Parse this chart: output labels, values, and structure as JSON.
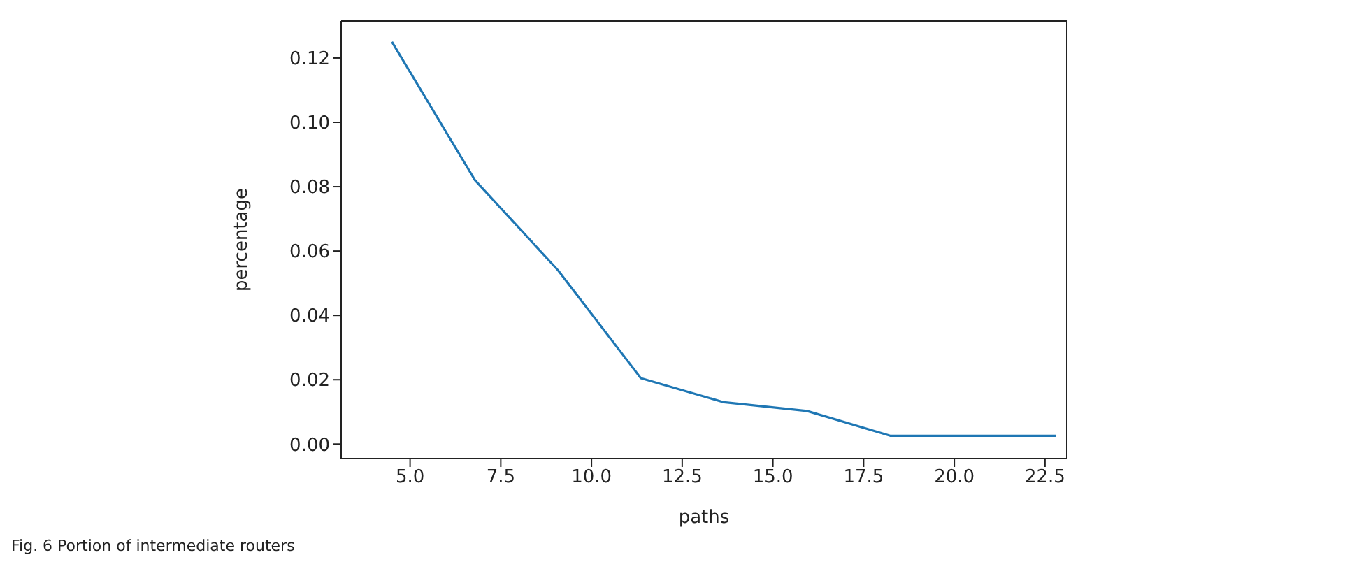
{
  "chart_data": {
    "type": "line",
    "xlabel": "paths",
    "ylabel": "percentage",
    "annotations": [
      "Fig. 6 Portion of intermediate routers"
    ],
    "x": [
      4.5,
      6.79,
      9.08,
      11.36,
      13.65,
      15.94,
      18.23,
      20.51,
      22.8
    ],
    "series": [
      {
        "color": "#1f77b4",
        "values": [
          0.125,
          0.082,
          0.054,
          0.0205,
          0.013,
          0.0103,
          0.0026,
          0.0026,
          0.0026
        ]
      }
    ],
    "xlim": [
      3.1,
      23.1
    ],
    "xticks": [
      {
        "value": 5,
        "label": "5.0"
      },
      {
        "value": 7.5,
        "label": "7.5"
      },
      {
        "value": 10,
        "label": "10.0"
      },
      {
        "value": 12.5,
        "label": "12.5"
      },
      {
        "value": 15,
        "label": "15.0"
      },
      {
        "value": 17.5,
        "label": "17.5"
      },
      {
        "value": 20,
        "label": "20.0"
      },
      {
        "value": 22.5,
        "label": "22.5"
      }
    ],
    "ylim": [
      -0.0045,
      0.1315
    ],
    "yticks": [
      {
        "value": 0,
        "label": "0.00"
      },
      {
        "value": 0.02,
        "label": "0.02"
      },
      {
        "value": 0.04,
        "label": "0.04"
      },
      {
        "value": 0.06,
        "label": "0.06"
      },
      {
        "value": 0.08,
        "label": "0.08"
      },
      {
        "value": 0.1,
        "label": "0.10"
      },
      {
        "value": 0.12,
        "label": "0.12"
      }
    ],
    "grid": false,
    "legend": false,
    "marker": "none",
    "line_style": "solid"
  }
}
